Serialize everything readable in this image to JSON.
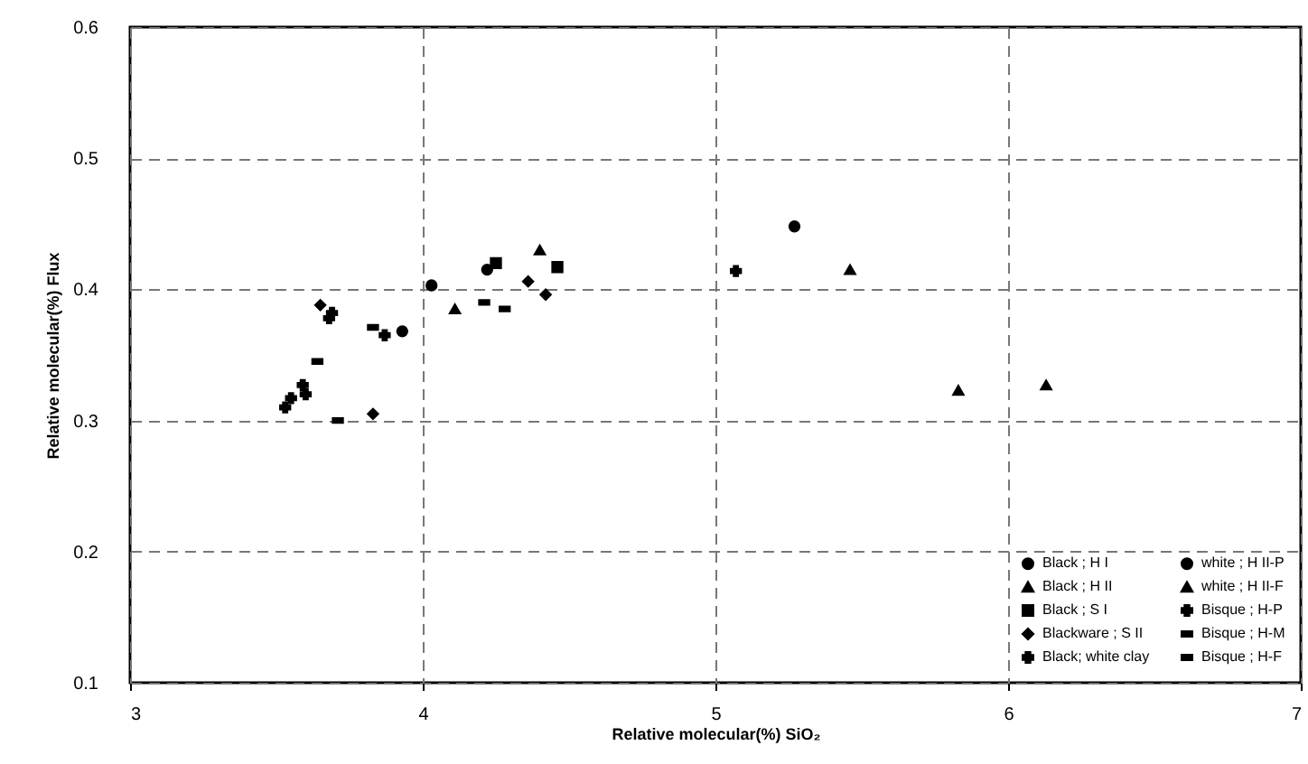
{
  "chart_data": {
    "type": "scatter",
    "xlabel": "Relative molecular(%) SiO₂",
    "ylabel": "Relative molecular(%) Flux",
    "xlim": [
      3,
      7
    ],
    "xticks": [
      3,
      4,
      5,
      6,
      7
    ],
    "ylim": [
      0.1,
      0.6
    ],
    "yticks": [
      0.1,
      0.2,
      0.3,
      0.4,
      0.5,
      0.6
    ],
    "grid": true,
    "legend": "bottom right",
    "series": [
      {
        "name": "Black ; H I",
        "color": "#000000",
        "marker": "circle",
        "x": [
          4.22,
          5.27
        ],
        "values": [
          0.415,
          0.448
        ]
      },
      {
        "name": "Black ; H II",
        "color": "#000000",
        "marker": "triangle",
        "x": [
          4.11,
          4.4,
          5.46
        ],
        "values": [
          0.385,
          0.43,
          0.415
        ]
      },
      {
        "name": "Black ; S I",
        "color": "#000000",
        "marker": "square",
        "x": [
          4.25,
          4.46
        ],
        "values": [
          0.42,
          0.417
        ]
      },
      {
        "name": "Blackware ; S II",
        "color": "#000000",
        "marker": "diamond",
        "x": [
          3.65,
          3.83,
          4.36,
          4.42
        ],
        "values": [
          0.388,
          0.305,
          0.406,
          0.396
        ]
      },
      {
        "name": "Black; white clay",
        "color": "#000000",
        "marker": "cross",
        "x": [
          3.53,
          3.55,
          3.59,
          3.6,
          3.68,
          3.69
        ],
        "values": [
          0.31,
          0.317,
          0.327,
          0.32,
          0.378,
          0.382
        ]
      },
      {
        "name": "white ; H II-P",
        "color": "#000000",
        "marker": "circle",
        "x": [
          3.93,
          4.03
        ],
        "values": [
          0.368,
          0.403
        ]
      },
      {
        "name": "white ; H II-F",
        "color": "#000000",
        "marker": "triangle",
        "x": [
          5.83,
          6.13
        ],
        "values": [
          0.323,
          0.327
        ]
      },
      {
        "name": "Bisque ; H-P",
        "color": "#000000",
        "marker": "cross",
        "x": [
          3.87,
          5.07
        ],
        "values": [
          0.365,
          0.414
        ]
      },
      {
        "name": "Bisque ; H-M",
        "color": "#000000",
        "x": [
          3.64,
          3.71,
          3.83
        ],
        "values": [
          0.345,
          0.3,
          0.371
        ]
      },
      {
        "name": "Bisque ; H-F",
        "color": "#000000",
        "x": [
          4.21,
          4.28
        ],
        "values": [
          0.39,
          0.385
        ]
      }
    ]
  }
}
